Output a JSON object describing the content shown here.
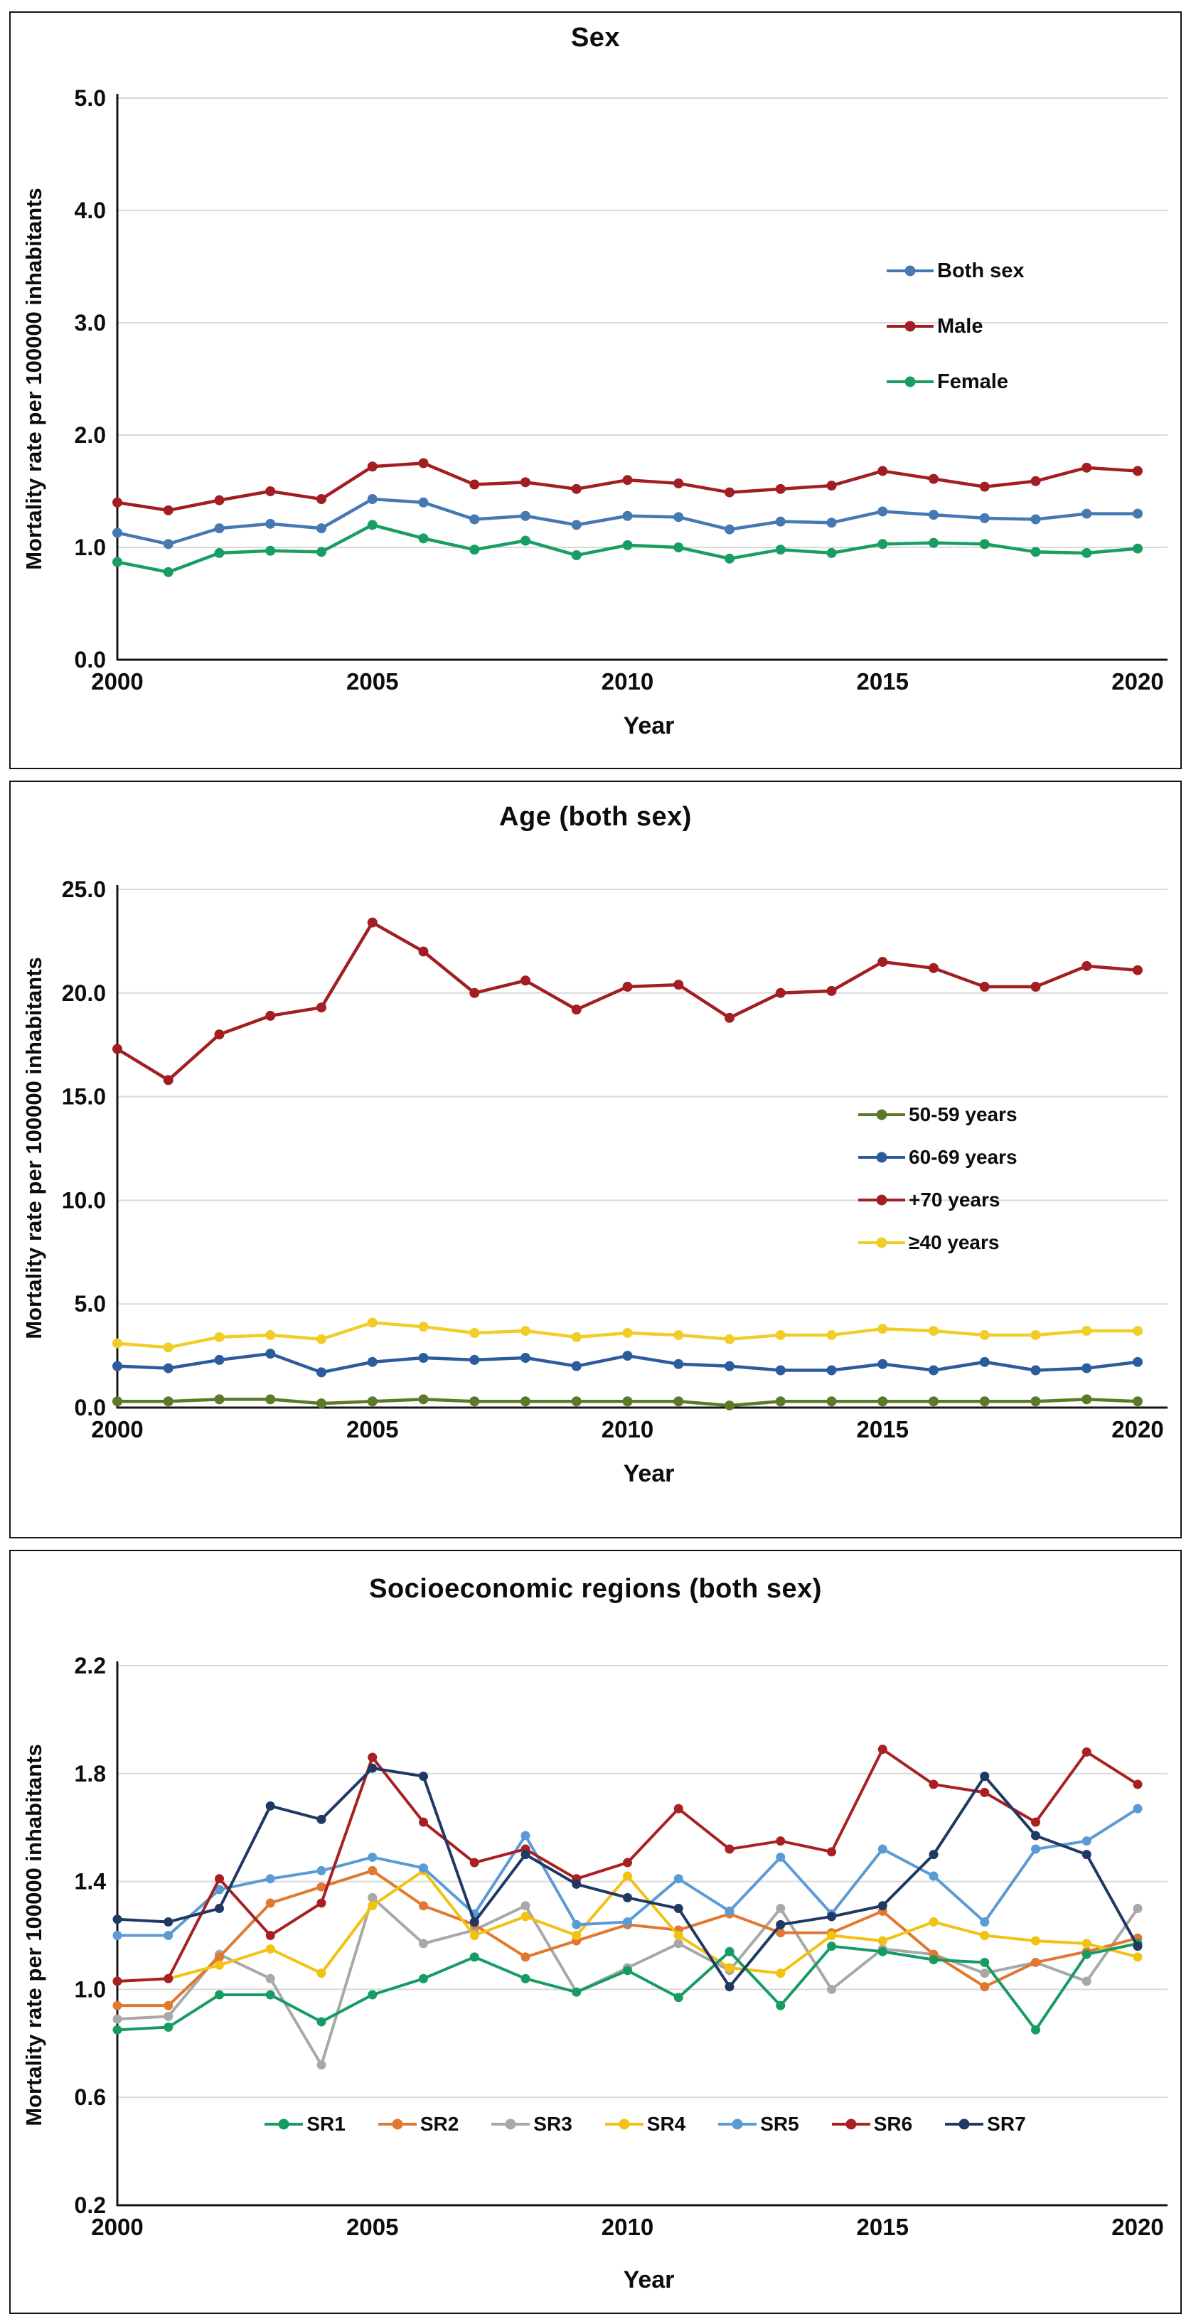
{
  "figure": {
    "xlabel": "Year",
    "ylabel": "Mortality rate per 100000 inhabitants"
  },
  "chart_data": [
    {
      "type": "line",
      "title": "Sex",
      "xlabel": "Year",
      "ylabel": "Mortality rate per 100000 inhabitants",
      "x": [
        2000,
        2001,
        2002,
        2003,
        2004,
        2005,
        2006,
        2007,
        2008,
        2009,
        2010,
        2011,
        2012,
        2013,
        2014,
        2015,
        2016,
        2017,
        2018,
        2019,
        2020
      ],
      "xticks": [
        2000,
        2005,
        2010,
        2015,
        2020
      ],
      "yticks": [
        "0.0",
        "1.0",
        "2.0",
        "3.0",
        "4.0",
        "5.0"
      ],
      "ylim": [
        0,
        5
      ],
      "grid": "horizontal",
      "legend_position": "right-middle",
      "series": [
        {
          "name": "Both sex",
          "color": "#4678b2",
          "values": [
            1.13,
            1.03,
            1.17,
            1.21,
            1.17,
            1.43,
            1.4,
            1.25,
            1.28,
            1.2,
            1.28,
            1.27,
            1.16,
            1.23,
            1.22,
            1.32,
            1.29,
            1.26,
            1.25,
            1.3,
            1.3
          ]
        },
        {
          "name": "Male",
          "color": "#a21e22",
          "values": [
            1.4,
            1.33,
            1.42,
            1.5,
            1.43,
            1.72,
            1.75,
            1.56,
            1.58,
            1.52,
            1.6,
            1.57,
            1.49,
            1.52,
            1.55,
            1.68,
            1.61,
            1.54,
            1.59,
            1.71,
            1.68
          ]
        },
        {
          "name": "Female",
          "color": "#189e63",
          "values": [
            0.87,
            0.78,
            0.95,
            0.97,
            0.96,
            1.2,
            1.08,
            0.98,
            1.06,
            0.93,
            1.02,
            1.0,
            0.9,
            0.98,
            0.95,
            1.03,
            1.04,
            1.03,
            0.96,
            0.95,
            0.99
          ]
        }
      ]
    },
    {
      "type": "line",
      "title": "Age (both sex)",
      "xlabel": "Year",
      "ylabel": "Mortality rate per 100000 inhabitants",
      "x": [
        2000,
        2001,
        2002,
        2003,
        2004,
        2005,
        2006,
        2007,
        2008,
        2009,
        2010,
        2011,
        2012,
        2013,
        2014,
        2015,
        2016,
        2017,
        2018,
        2019,
        2020
      ],
      "xticks": [
        2000,
        2005,
        2010,
        2015,
        2020
      ],
      "yticks": [
        "0.0",
        "5.0",
        "10.0",
        "15.0",
        "20.0",
        "25.0"
      ],
      "ylim": [
        0,
        25
      ],
      "grid": "horizontal",
      "legend_position": "right-middle",
      "series": [
        {
          "name": "50-59 years",
          "color": "#5a7a29",
          "values": [
            0.3,
            0.3,
            0.4,
            0.4,
            0.2,
            0.3,
            0.4,
            0.3,
            0.3,
            0.3,
            0.3,
            0.3,
            0.1,
            0.3,
            0.3,
            0.3,
            0.3,
            0.3,
            0.3,
            0.4,
            0.3
          ]
        },
        {
          "name": "60-69 years",
          "color": "#2c5c9e",
          "values": [
            2.0,
            1.9,
            2.3,
            2.6,
            1.7,
            2.2,
            2.4,
            2.3,
            2.4,
            2.0,
            2.5,
            2.1,
            2.0,
            1.8,
            1.8,
            2.1,
            1.8,
            2.2,
            1.8,
            1.9,
            2.2
          ]
        },
        {
          "name": "+70 years",
          "color": "#a21e22",
          "values": [
            17.3,
            15.8,
            18.0,
            18.9,
            19.3,
            23.4,
            22.0,
            20.0,
            20.6,
            19.2,
            20.3,
            20.4,
            18.8,
            20.0,
            20.1,
            21.5,
            21.2,
            20.3,
            20.3,
            21.3,
            21.1
          ]
        },
        {
          "name": "≥40 years",
          "color": "#f0cd27",
          "values": [
            3.1,
            2.9,
            3.4,
            3.5,
            3.3,
            4.1,
            3.9,
            3.6,
            3.7,
            3.4,
            3.6,
            3.5,
            3.3,
            3.5,
            3.5,
            3.8,
            3.7,
            3.5,
            3.5,
            3.7,
            3.7
          ]
        }
      ]
    },
    {
      "type": "line",
      "title": "Socioeconomic regions (both sex)",
      "xlabel": "Year",
      "ylabel": "Mortality rate per 100000 inhabitants",
      "x": [
        2000,
        2001,
        2002,
        2003,
        2004,
        2005,
        2006,
        2007,
        2008,
        2009,
        2010,
        2011,
        2012,
        2013,
        2014,
        2015,
        2016,
        2017,
        2018,
        2019,
        2020
      ],
      "xticks": [
        2000,
        2005,
        2010,
        2015,
        2020
      ],
      "yticks": [
        "0.2",
        "0.6",
        "1.0",
        "1.4",
        "1.8",
        "2.2"
      ],
      "ylim": [
        0.2,
        2.2
      ],
      "grid": "horizontal",
      "legend_position": "bottom-inside",
      "series": [
        {
          "name": "SR1",
          "color": "#169c62",
          "values": [
            0.85,
            0.86,
            0.98,
            0.98,
            0.88,
            0.98,
            1.04,
            1.12,
            1.04,
            0.99,
            1.07,
            0.97,
            1.14,
            0.94,
            1.16,
            1.14,
            1.11,
            1.1,
            0.85,
            1.13,
            1.17
          ]
        },
        {
          "name": "SR2",
          "color": "#e0782f",
          "values": [
            0.94,
            0.94,
            1.12,
            1.32,
            1.38,
            1.44,
            1.31,
            1.24,
            1.12,
            1.18,
            1.24,
            1.22,
            1.28,
            1.21,
            1.21,
            1.29,
            1.13,
            1.01,
            1.1,
            1.14,
            1.19
          ]
        },
        {
          "name": "SR3",
          "color": "#a8a8a8",
          "values": [
            0.89,
            0.9,
            1.13,
            1.04,
            0.72,
            1.34,
            1.17,
            1.22,
            1.31,
            0.99,
            1.08,
            1.17,
            1.07,
            1.3,
            1.0,
            1.15,
            1.13,
            1.06,
            1.1,
            1.03,
            1.3
          ]
        },
        {
          "name": "SR4",
          "color": "#f2c211",
          "values": [
            1.03,
            1.04,
            1.09,
            1.15,
            1.06,
            1.31,
            1.44,
            1.2,
            1.27,
            1.2,
            1.42,
            1.2,
            1.08,
            1.06,
            1.2,
            1.18,
            1.25,
            1.2,
            1.18,
            1.17,
            1.12
          ]
        },
        {
          "name": "SR5",
          "color": "#5b9bd5",
          "values": [
            1.2,
            1.2,
            1.37,
            1.41,
            1.44,
            1.49,
            1.45,
            1.28,
            1.57,
            1.24,
            1.25,
            1.41,
            1.29,
            1.49,
            1.28,
            1.52,
            1.42,
            1.25,
            1.52,
            1.55,
            1.67
          ]
        },
        {
          "name": "SR6",
          "color": "#a92023",
          "values": [
            1.03,
            1.04,
            1.41,
            1.2,
            1.32,
            1.86,
            1.62,
            1.47,
            1.52,
            1.41,
            1.47,
            1.67,
            1.52,
            1.55,
            1.51,
            1.89,
            1.76,
            1.73,
            1.62,
            1.88,
            1.76
          ]
        },
        {
          "name": "SR7",
          "color": "#1f3864",
          "values": [
            1.26,
            1.25,
            1.3,
            1.68,
            1.63,
            1.82,
            1.79,
            1.25,
            1.5,
            1.39,
            1.34,
            1.3,
            1.01,
            1.24,
            1.27,
            1.31,
            1.5,
            1.79,
            1.57,
            1.5,
            1.16
          ]
        }
      ]
    }
  ]
}
